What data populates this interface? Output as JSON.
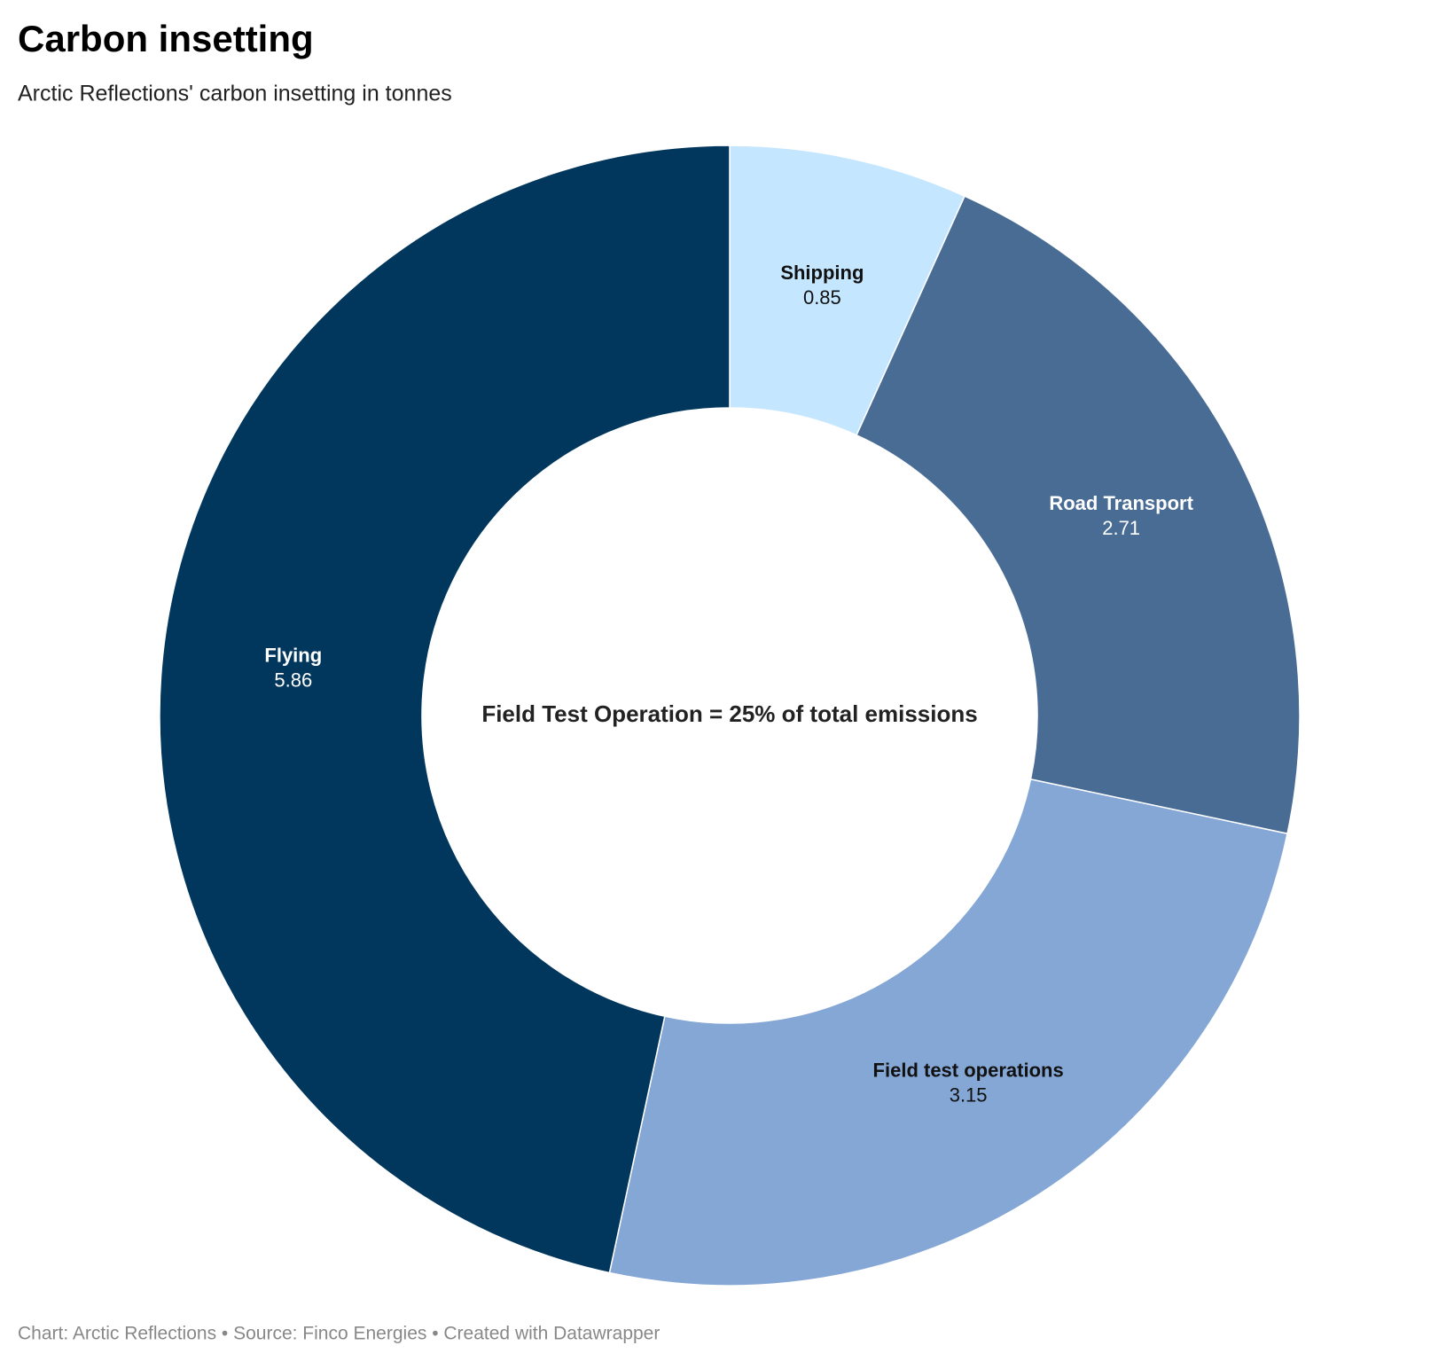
{
  "chart_data": {
    "type": "donut",
    "title": "Carbon insetting",
    "subtitle": "Arctic Reflections' carbon insetting in tonnes",
    "annotation": "Field Test Operation = 25% of total emissions",
    "footer": "Chart: Arctic Reflections • Source: Finco Energies • Created with Datawrapper",
    "categories": [
      "Shipping",
      "Road Transport",
      "Field test operations",
      "Flying"
    ],
    "values": [
      0.85,
      2.71,
      3.15,
      5.86
    ],
    "colors": [
      "#c4e6ff",
      "#496c95",
      "#84a7d5",
      "#02375d"
    ]
  }
}
